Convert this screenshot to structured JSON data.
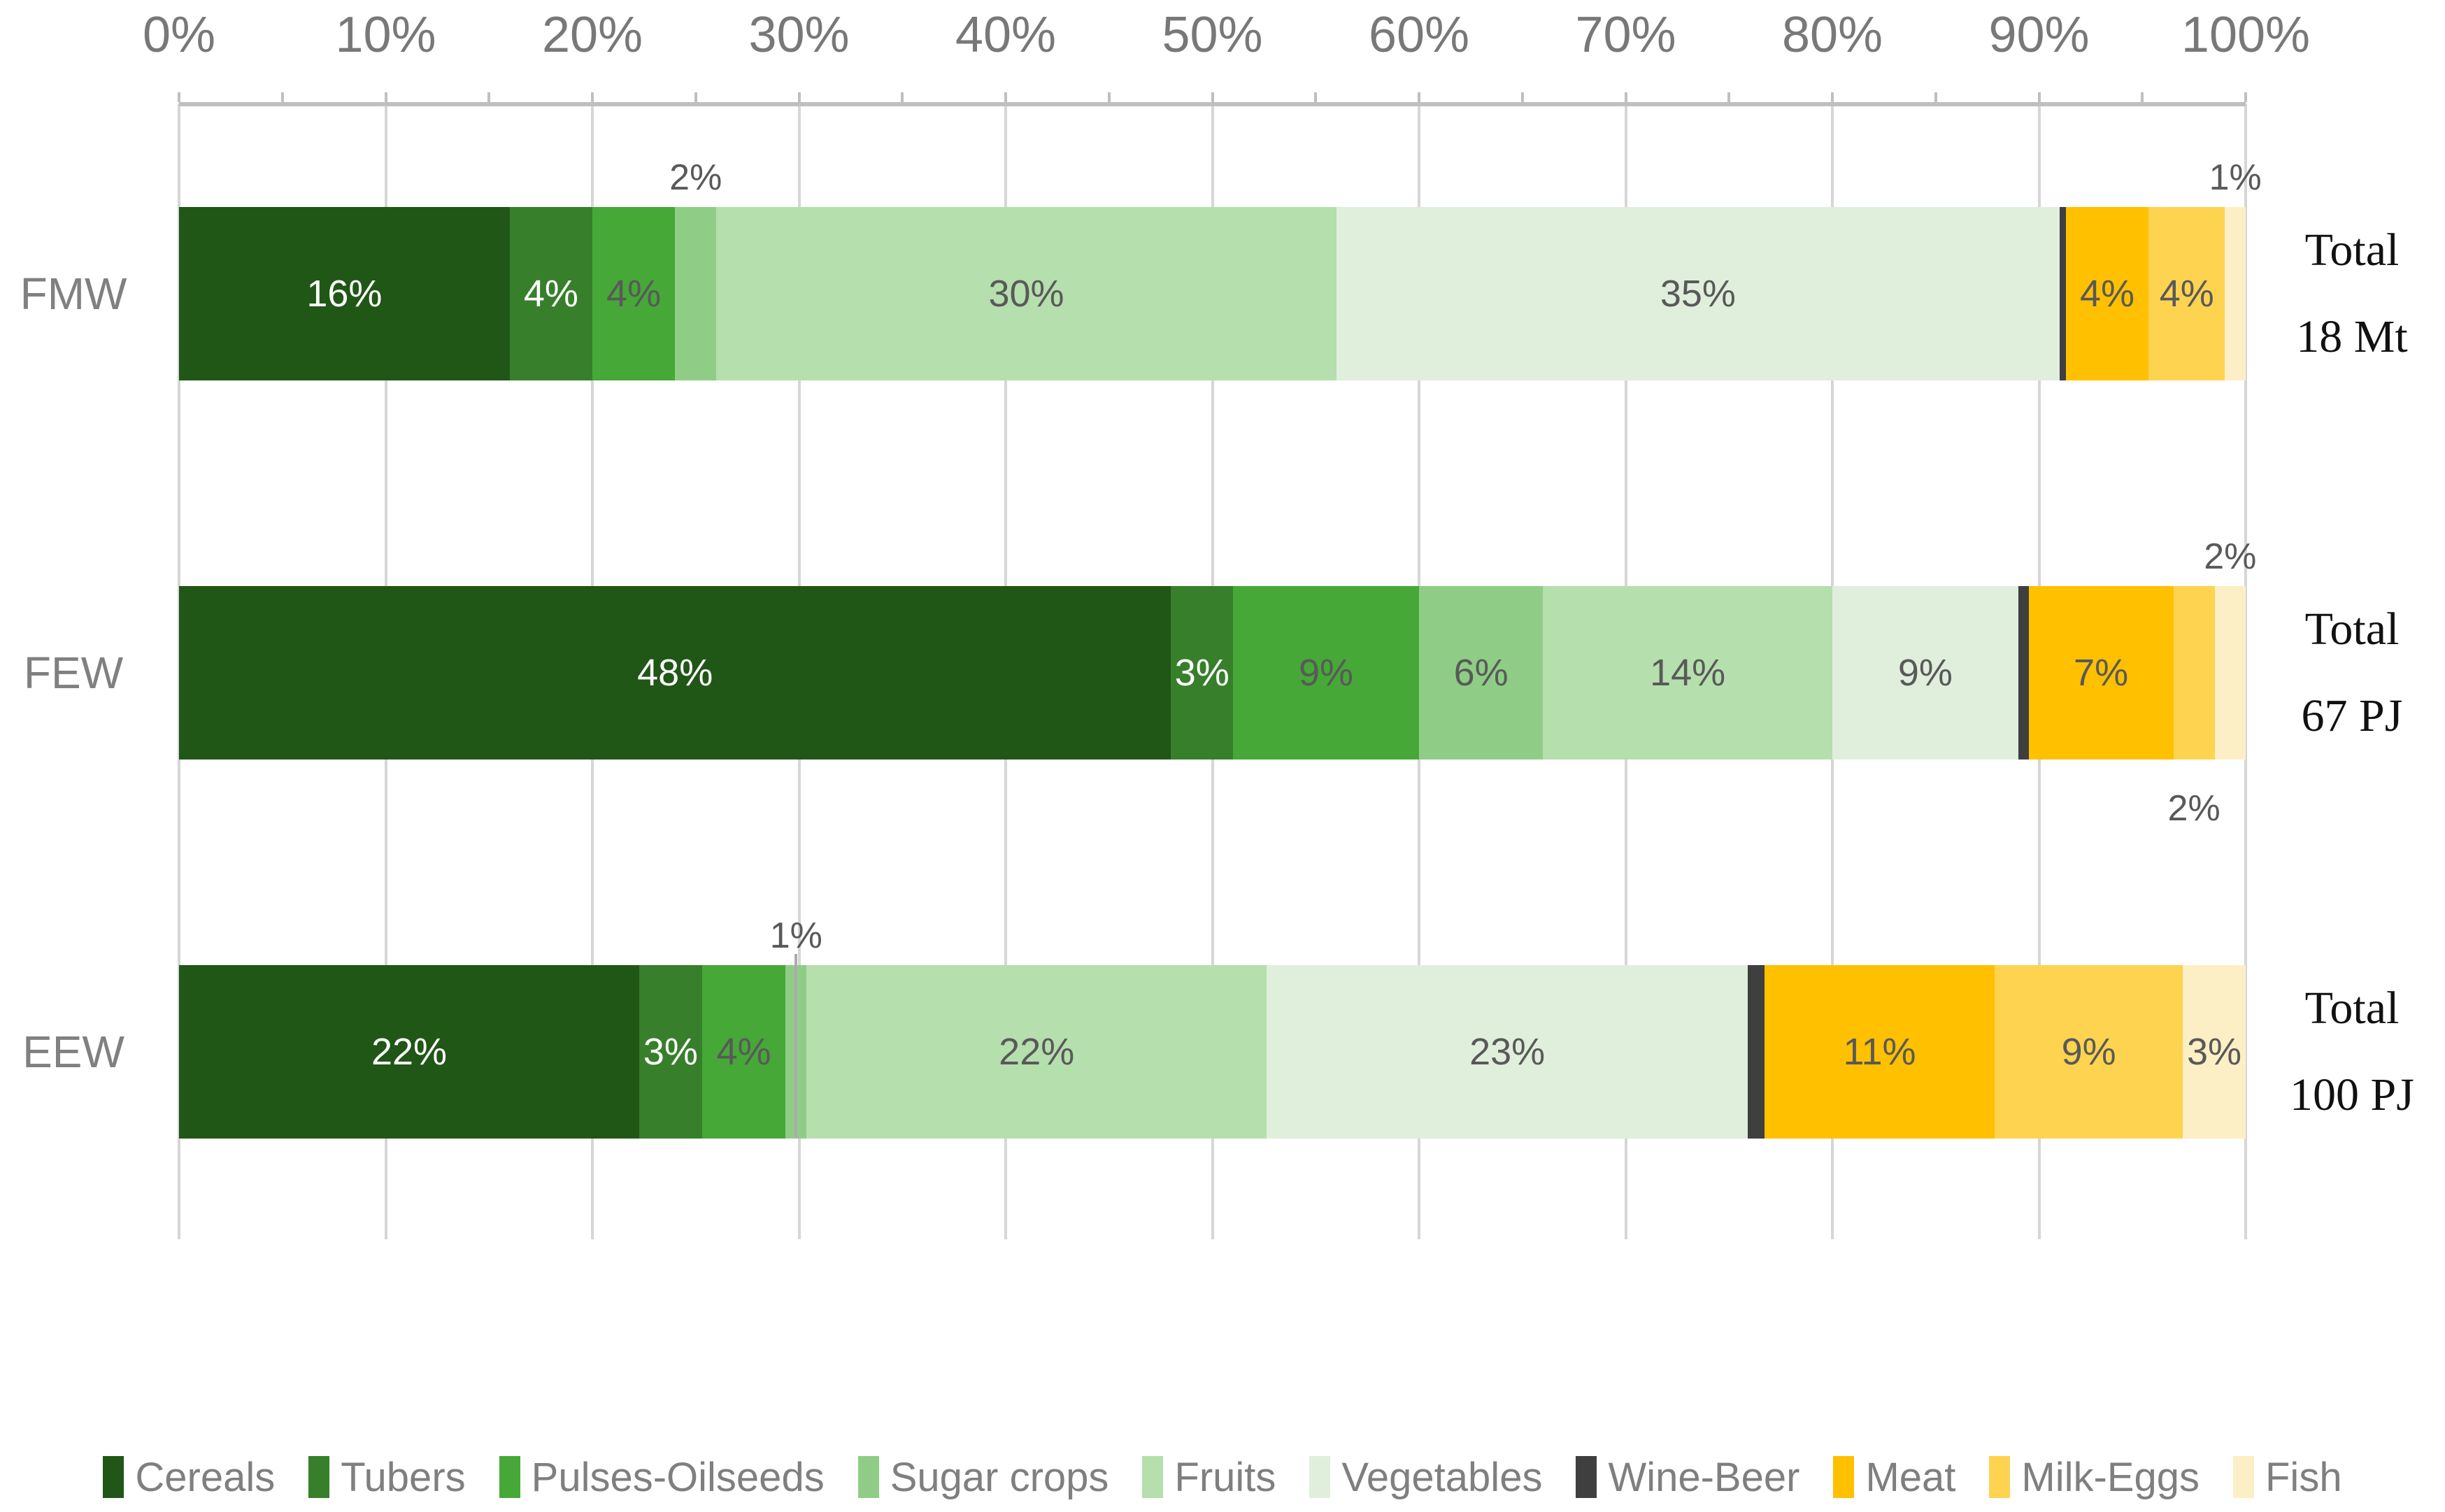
{
  "chart_data": {
    "type": "bar",
    "stacked": true,
    "orientation": "horizontal",
    "title": "",
    "x_axis": {
      "range_pct": [
        0,
        100
      ],
      "major_tick_step_pct": 10,
      "minor_tick_step_pct": 5,
      "ticks": [
        "0%",
        "10%",
        "20%",
        "30%",
        "40%",
        "50%",
        "60%",
        "70%",
        "80%",
        "90%",
        "100%"
      ],
      "grid": true
    },
    "legend_position": "bottom",
    "categories": [
      "FMW",
      "FEW",
      "EEW"
    ],
    "totals": [
      {
        "line1": "Total",
        "line2": "18 Mt"
      },
      {
        "line1": "Total",
        "line2": "67 PJ"
      },
      {
        "line1": "Total",
        "line2": "100 PJ"
      }
    ],
    "series": [
      {
        "name": "Cereals",
        "color": "#205616",
        "values": [
          16,
          48,
          22
        ],
        "labels": [
          {
            "text": "16%",
            "placement": "inside",
            "tone": "light"
          },
          {
            "text": "48%",
            "placement": "inside",
            "tone": "light"
          },
          {
            "text": "22%",
            "placement": "inside",
            "tone": "light"
          }
        ]
      },
      {
        "name": "Tubers",
        "color": "#377F2B",
        "values": [
          4,
          3,
          3
        ],
        "labels": [
          {
            "text": "4%",
            "placement": "inside",
            "tone": "light"
          },
          {
            "text": "3%",
            "placement": "inside",
            "tone": "light"
          },
          {
            "text": "3%",
            "placement": "inside",
            "tone": "light"
          }
        ]
      },
      {
        "name": "Pulses-Oilseeds",
        "color": "#45A837",
        "values": [
          4,
          9,
          4
        ],
        "labels": [
          {
            "text": "4%",
            "placement": "inside",
            "tone": "dark"
          },
          {
            "text": "9%",
            "placement": "inside",
            "tone": "dark"
          },
          {
            "text": "4%",
            "placement": "inside",
            "tone": "dark"
          }
        ]
      },
      {
        "name": "Sugar crops",
        "color": "#8FCD86",
        "values": [
          2,
          6,
          1
        ],
        "labels": [
          {
            "text": "2%",
            "placement": "above",
            "tone": "dark"
          },
          {
            "text": "6%",
            "placement": "inside",
            "tone": "dark"
          },
          {
            "text": "1%",
            "placement": "above",
            "tone": "dark",
            "leader": true
          }
        ]
      },
      {
        "name": "Fruits",
        "color": "#B5DFAD",
        "values": [
          30,
          14,
          22
        ],
        "labels": [
          {
            "text": "30%",
            "placement": "inside",
            "tone": "dark"
          },
          {
            "text": "14%",
            "placement": "inside",
            "tone": "dark"
          },
          {
            "text": "22%",
            "placement": "inside",
            "tone": "dark"
          }
        ]
      },
      {
        "name": "Vegetables",
        "color": "#DFEFDC",
        "values": [
          35,
          9,
          23
        ],
        "labels": [
          {
            "text": "35%",
            "placement": "inside",
            "tone": "dark"
          },
          {
            "text": "9%",
            "placement": "inside",
            "tone": "dark"
          },
          {
            "text": "23%",
            "placement": "inside",
            "tone": "dark"
          }
        ]
      },
      {
        "name": "Wine-Beer",
        "color": "#3F3F3F",
        "values": [
          0.3,
          0.5,
          0.8
        ],
        "labels": [
          {
            "text": "",
            "placement": "none"
          },
          {
            "text": "",
            "placement": "none"
          },
          {
            "text": "",
            "placement": "none"
          }
        ]
      },
      {
        "name": "Meat",
        "color": "#FFC000",
        "values": [
          4,
          7,
          11
        ],
        "labels": [
          {
            "text": "4%",
            "placement": "inside",
            "tone": "dark"
          },
          {
            "text": "7%",
            "placement": "inside",
            "tone": "dark"
          },
          {
            "text": "11%",
            "placement": "inside",
            "tone": "dark"
          }
        ]
      },
      {
        "name": "Milk-Eggs",
        "color": "#FED34F",
        "values": [
          3.7,
          2,
          9
        ],
        "labels": [
          {
            "text": "4%",
            "placement": "inside",
            "tone": "dark"
          },
          {
            "text": "2%",
            "placement": "below",
            "tone": "dark"
          },
          {
            "text": "9%",
            "placement": "inside",
            "tone": "dark"
          }
        ]
      },
      {
        "name": "Fish",
        "color": "#FCEFC5",
        "values": [
          1,
          1.5,
          3
        ],
        "labels": [
          {
            "text": "1%",
            "placement": "above",
            "tone": "dark"
          },
          {
            "text": "2%",
            "placement": "above",
            "tone": "dark"
          },
          {
            "text": "3%",
            "placement": "inside",
            "tone": "dark"
          }
        ]
      }
    ],
    "colors": {
      "gridline": "#D6D6D6",
      "axis_line": "#BFBFBF",
      "axis_text": "#787878",
      "category_text": "#808080",
      "label_dark": "#595959",
      "label_light": "#FFFFFF",
      "legend_text": "#7F7F7F",
      "total_text": "#111111",
      "leader_line": "#ABABAB"
    }
  }
}
